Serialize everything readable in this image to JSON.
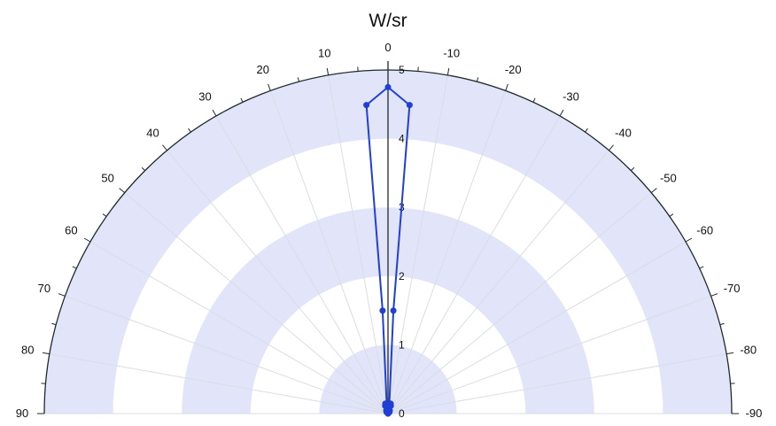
{
  "chart_data": {
    "type": "polar-line",
    "title": "W/sr",
    "angle_range": [
      -90,
      90
    ],
    "angle_ticks": [
      90,
      80,
      70,
      60,
      50,
      40,
      30,
      20,
      10,
      0,
      -10,
      -20,
      -30,
      -40,
      -50,
      -60,
      -70,
      -80,
      -90
    ],
    "angle_tick_labels": [
      "90",
      "80",
      "70",
      "60",
      "50",
      "40",
      "30",
      "20",
      "10",
      "0",
      "-10",
      "-20",
      "-30",
      "-40",
      "-50",
      "-60",
      "-70",
      "-80",
      "-90"
    ],
    "radial_range": [
      0,
      5
    ],
    "radial_ticks": [
      0,
      1,
      2,
      3,
      4,
      5
    ],
    "radial_tick_labels": [
      "0",
      "1",
      "2",
      "3",
      "4",
      "5"
    ],
    "minor_angle_step": 5,
    "colors": {
      "series": "#1f3fd6",
      "band": "#e2e5fa",
      "grid": "#d9dde3",
      "axis": "#1f2a2a"
    },
    "series": [
      {
        "points": [
          {
            "angle": -90,
            "r": 0.0
          },
          {
            "angle": -45,
            "r": 0.03
          },
          {
            "angle": -30,
            "r": 0.05
          },
          {
            "angle": -20,
            "r": 0.12
          },
          {
            "angle": -15,
            "r": 0.15
          },
          {
            "angle": -10,
            "r": 0.1
          },
          {
            "angle": -3,
            "r": 1.5
          },
          {
            "angle": -4,
            "r": 4.5
          },
          {
            "angle": 0,
            "r": 4.75
          },
          {
            "angle": 4,
            "r": 4.5
          },
          {
            "angle": 3,
            "r": 1.5
          },
          {
            "angle": 10,
            "r": 0.1
          },
          {
            "angle": 15,
            "r": 0.15
          },
          {
            "angle": 20,
            "r": 0.12
          },
          {
            "angle": 30,
            "r": 0.05
          },
          {
            "angle": 45,
            "r": 0.03
          },
          {
            "angle": 90,
            "r": 0.0
          }
        ]
      }
    ]
  }
}
